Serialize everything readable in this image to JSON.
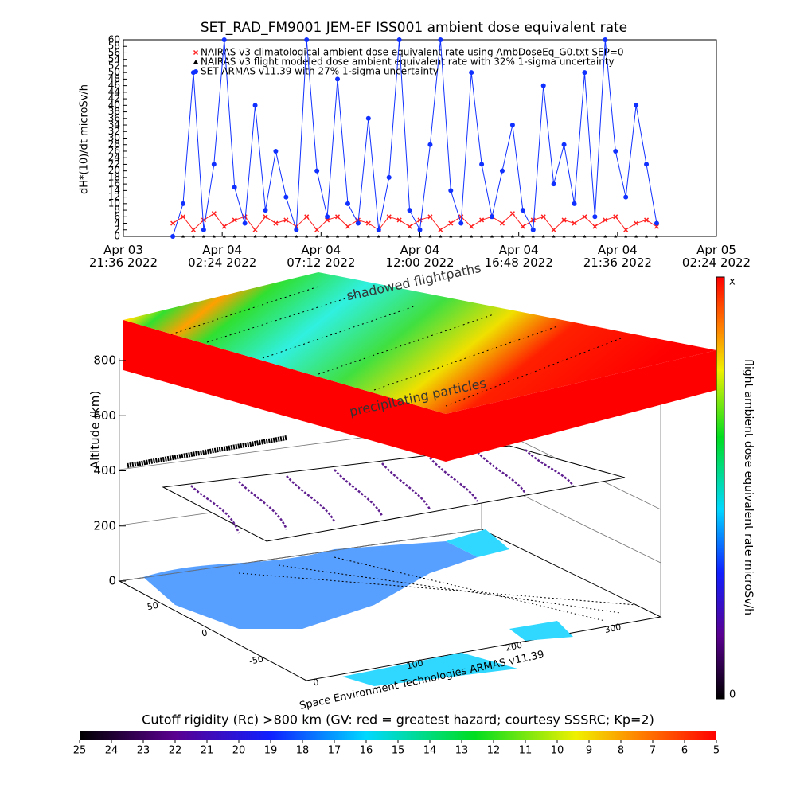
{
  "chart_data": {
    "type": "line",
    "title": "SET_RAD_FM9001  JEM-EF ISS001 ambient dose equivalent rate",
    "y_label": "dH*(10)/dt microSv/h",
    "x": [
      "2022-04-04 00:00",
      "2022-04-04 00:30",
      "2022-04-04 01:00",
      "2022-04-04 01:30",
      "2022-04-04 02:00",
      "2022-04-04 02:30",
      "2022-04-04 03:00",
      "2022-04-04 03:30",
      "2022-04-04 04:00",
      "2022-04-04 04:30",
      "2022-04-04 05:00",
      "2022-04-04 05:30",
      "2022-04-04 06:00",
      "2022-04-04 06:30",
      "2022-04-04 07:00",
      "2022-04-04 07:30",
      "2022-04-04 08:00",
      "2022-04-04 08:30",
      "2022-04-04 09:00",
      "2022-04-04 09:30",
      "2022-04-04 10:00",
      "2022-04-04 10:30",
      "2022-04-04 11:00",
      "2022-04-04 11:30",
      "2022-04-04 12:00",
      "2022-04-04 12:30",
      "2022-04-04 13:00",
      "2022-04-04 13:30",
      "2022-04-04 14:00",
      "2022-04-04 14:30",
      "2022-04-04 15:00",
      "2022-04-04 15:30",
      "2022-04-04 16:00",
      "2022-04-04 16:30",
      "2022-04-04 17:00",
      "2022-04-04 17:30",
      "2022-04-04 18:00",
      "2022-04-04 18:30",
      "2022-04-04 19:00",
      "2022-04-04 19:30",
      "2022-04-04 20:00",
      "2022-04-04 20:30",
      "2022-04-04 21:00",
      "2022-04-04 21:30",
      "2022-04-04 22:00",
      "2022-04-04 22:30",
      "2022-04-04 23:00",
      "2022-04-04 23:30"
    ],
    "series": [
      {
        "name": "NAIRAS v3 climatological ambient dose equivalent rate using AmbDoseEq_G0.txt SEP=0",
        "color": "#ff2020",
        "marker": "x",
        "values": [
          4,
          6,
          2,
          5,
          7,
          3,
          5,
          6,
          2,
          6,
          4,
          5,
          3,
          6,
          2,
          5,
          6,
          3,
          5,
          4,
          2,
          6,
          5,
          3,
          5,
          6,
          2,
          4,
          6,
          3,
          5,
          6,
          4,
          7,
          3,
          5,
          6,
          2,
          5,
          4,
          6,
          3,
          5,
          6,
          2,
          4,
          5,
          3
        ]
      },
      {
        "name": "NAIRAS v3 flight modeled dose ambient equivalent rate with 32% 1-sigma uncertainty",
        "color": "#000000",
        "marker": "triangle",
        "values": [
          0,
          0,
          0,
          0,
          0,
          0,
          0,
          0,
          0,
          0,
          0,
          0,
          0,
          0,
          0,
          0,
          0,
          0,
          0,
          0,
          0,
          0,
          0,
          0,
          0,
          0,
          0,
          0,
          0,
          0,
          0,
          0,
          0,
          0,
          0,
          0,
          0,
          0,
          0,
          0,
          0,
          0,
          0,
          0,
          0,
          0,
          0,
          0
        ]
      },
      {
        "name": "SET ARMAS v11.39 with 27% 1-sigma uncertainty",
        "color": "#1030ff",
        "marker": "circle",
        "values": [
          0,
          10,
          50,
          2,
          22,
          60,
          15,
          4,
          40,
          8,
          26,
          12,
          2,
          60,
          20,
          6,
          48,
          10,
          4,
          36,
          2,
          18,
          60,
          8,
          2,
          28,
          60,
          14,
          4,
          50,
          22,
          6,
          20,
          34,
          8,
          2,
          46,
          16,
          28,
          10,
          50,
          6,
          60,
          26,
          12,
          40,
          22,
          4
        ]
      }
    ],
    "xlim": [
      "2022-04-03 21:36",
      "2022-04-05 02:24"
    ],
    "xticks": [
      {
        "value": "2022-04-03 21:36",
        "label": "Apr 03\n21:36 2022"
      },
      {
        "value": "2022-04-04 02:24",
        "label": "Apr 04\n02:24 2022"
      },
      {
        "value": "2022-04-04 07:12",
        "label": "Apr 04\n07:12 2022"
      },
      {
        "value": "2022-04-04 12:00",
        "label": "Apr 04\n12:00 2022"
      },
      {
        "value": "2022-04-04 16:48",
        "label": "Apr 04\n16:48 2022"
      },
      {
        "value": "2022-04-04 21:36",
        "label": "Apr 04\n21:36 2022"
      },
      {
        "value": "2022-04-05 02:24",
        "label": "Apr 05\n02:24 2022"
      }
    ],
    "ylim": [
      0,
      60
    ],
    "yticks": [
      0,
      2,
      4,
      6,
      8,
      10,
      12,
      14,
      16,
      18,
      20,
      22,
      24,
      26,
      28,
      30,
      32,
      34,
      36,
      38,
      40,
      42,
      44,
      46,
      48,
      50,
      52,
      54,
      56,
      58,
      60
    ]
  },
  "scene": {
    "annotations": [
      "shadowed flightpaths",
      "precipitating particles"
    ],
    "altitude_axis": {
      "label": "Altitude (km)",
      "ticks": [
        0,
        200,
        400,
        600,
        800
      ]
    },
    "lat_ticks": [
      50,
      0,
      -50
    ],
    "lon_ticks": [
      0,
      100,
      200,
      300
    ],
    "credit": "Space Environment Technologies ARMAS v11.39",
    "dose_colorbar": {
      "label": "flight ambient dose equivalent rate microSv/h",
      "top": "x",
      "bottom": "0"
    },
    "rigidity_colorbar": {
      "title": "Cutoff rigidity (Rc) >800 km (GV: red = greatest hazard; courtesy SSSRC; Kp=2)",
      "ticks": [
        25,
        24,
        23,
        22,
        21,
        20,
        19,
        18,
        17,
        16,
        15,
        14,
        13,
        12,
        11,
        10,
        9,
        8,
        7,
        6,
        5
      ]
    }
  }
}
